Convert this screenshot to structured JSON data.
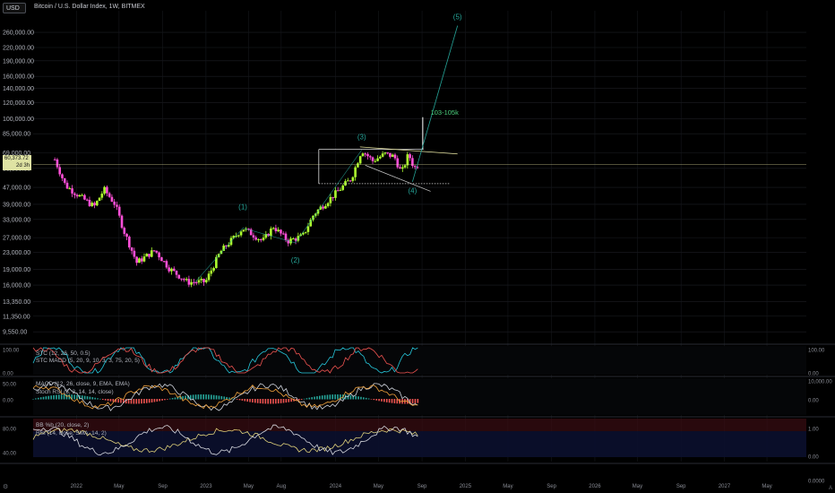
{
  "header": {
    "currency": "USD",
    "title": "Bitcoin / U.S. Dollar Index, 1W, BITMEX"
  },
  "price_tag": {
    "value": "60,373.72",
    "countdown": "2d 3h"
  },
  "indicators": {
    "stc": "STC (12, 26, 50, 0.5)",
    "stc_macd": "STC MACD (5, 20, 9, 10, 3, 3, 75, 20, 5)",
    "macd": "MACD (12, 26, close, 9, EMA, EMA)",
    "stoch_rsi": "Stoch RSI (3, 3, 14, 14, close)",
    "bb": "BB %b (20, close, 2)",
    "rsi": "RSI (14, close, SMA, 14, 2)"
  },
  "colors": {
    "bull": "#adff2f",
    "bear": "#ff4fd8",
    "wave": "#26a69a",
    "accent": "#e8e5a0",
    "text": "#b2b5be"
  },
  "chart_data": [
    {
      "type": "candlestick",
      "title": "Bitcoin / U.S. Dollar Index, 1W, BITMEX",
      "yscale": "log",
      "y_ticks": [
        "260,000.00",
        "220,000.00",
        "190,000.00",
        "160,000.00",
        "140,000.00",
        "120,000.00",
        "100,000.00",
        "85,000.00",
        "69,000.00",
        "58,000.00",
        "47,000.00",
        "39,000.00",
        "33,000.00",
        "27,000.00",
        "23,000.00",
        "19,000.00",
        "16,000.00",
        "13,350.00",
        "11,350.00",
        "9,550.00"
      ],
      "x_ticks": [
        "2022",
        "May",
        "Sep",
        "2023",
        "May",
        "Aug",
        "2024",
        "May",
        "Sep",
        "2025",
        "May",
        "Sep",
        "2026",
        "May",
        "Sep",
        "2027",
        "May"
      ],
      "last_price": "60,373.72",
      "path_points": [
        [
          "2021-11-01",
          64000
        ],
        [
          "2021-12-01",
          48000
        ],
        [
          "2022-01-15",
          42000
        ],
        [
          "2022-02-20",
          38000
        ],
        [
          "2022-03-20",
          46000
        ],
        [
          "2022-04-20",
          39000
        ],
        [
          "2022-05-15",
          29000
        ],
        [
          "2022-06-20",
          20500
        ],
        [
          "2022-08-10",
          23500
        ],
        [
          "2022-09-20",
          19200
        ],
        [
          "2022-11-10",
          16500
        ],
        [
          "2022-12-31",
          16600
        ],
        [
          "2023-02-10",
          23000
        ],
        [
          "2023-04-15",
          30000
        ],
        [
          "2023-06-10",
          26000
        ],
        [
          "2023-07-10",
          30500
        ],
        [
          "2023-08-20",
          26000
        ],
        [
          "2023-10-01",
          27500
        ],
        [
          "2023-11-01",
          35000
        ],
        [
          "2024-01-01",
          44000
        ],
        [
          "2024-02-15",
          52000
        ],
        [
          "2024-03-15",
          71000
        ],
        [
          "2024-04-15",
          63000
        ],
        [
          "2024-05-20",
          68000
        ],
        [
          "2024-06-15",
          66000
        ],
        [
          "2024-07-05",
          55000
        ],
        [
          "2024-07-25",
          68000
        ],
        [
          "2024-08-10",
          58000
        ],
        [
          "2024-08-20",
          60373.72
        ]
      ],
      "elliott_labels": [
        {
          "label": "(1)",
          "date": "2023-04-15",
          "price": 37000
        },
        {
          "label": "(2)",
          "date": "2023-09-10",
          "price": 20500
        },
        {
          "label": "(3)",
          "date": "2024-03-15",
          "price": 80000
        },
        {
          "label": "(4)",
          "date": "2024-08-05",
          "price": 44000
        },
        {
          "label": "(5)",
          "date": "2024-12-10",
          "price": 300000
        }
      ],
      "annotations": [
        {
          "text": "103-105k",
          "date": "2024-09-25",
          "price": 105000
        }
      ]
    },
    {
      "type": "line",
      "title": "STC (12, 26, 50, 0.5)",
      "y_ticks": [
        "100.00",
        "0.00"
      ],
      "right_ticks": [
        "100.00",
        "0.00"
      ]
    },
    {
      "type": "line",
      "title": "MACD (12, 26, close, 9, EMA, EMA)",
      "y_ticks": [
        "50.00",
        "0.00"
      ],
      "right_ticks": [
        "10,000.00",
        "0.00"
      ]
    },
    {
      "type": "line",
      "title": "BB %b (20, close, 2)",
      "y_ticks": [
        "80.00",
        "40.00"
      ],
      "right_ticks": [
        "1.00",
        "0.00",
        "0.0000"
      ]
    }
  ]
}
